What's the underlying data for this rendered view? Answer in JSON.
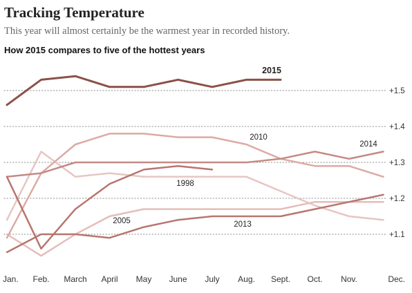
{
  "header": {
    "title": "Tracking Temperature",
    "subtitle": "This year will almost certainly be the warmest year in recorded history."
  },
  "chart_data": {
    "type": "line",
    "title": "How 2015 compares to five of the hottest years",
    "xlabel": "",
    "ylabel": "",
    "categories": [
      "Jan.",
      "Feb.",
      "March",
      "April",
      "May",
      "June",
      "July",
      "Aug.",
      "Sept.",
      "Oct.",
      "Nov.",
      "Dec."
    ],
    "y_ticks": [
      1.1,
      1.2,
      1.3,
      1.4,
      1.5
    ],
    "y_tick_labels": [
      "+1.1",
      "+1.2",
      "+1.3",
      "+1.4",
      "+1.5"
    ],
    "ylim": [
      1.03,
      1.57
    ],
    "grid": "dotted horizontal",
    "series": [
      {
        "name": "1998",
        "color": "#e6c6c2",
        "width": 2.5,
        "values": [
          1.14,
          1.33,
          1.26,
          1.27,
          1.26,
          1.26,
          1.26,
          1.26,
          1.22,
          1.18,
          1.15,
          1.14
        ]
      },
      {
        "name": "2005",
        "color": "#e4bdb8",
        "width": 2.5,
        "values": [
          1.1,
          1.04,
          1.1,
          1.15,
          1.17,
          1.17,
          1.17,
          1.17,
          1.17,
          1.19,
          1.19,
          1.19
        ]
      },
      {
        "name": "2010",
        "color": "#dcaaa4",
        "width": 2.5,
        "values": [
          1.09,
          1.27,
          1.35,
          1.38,
          1.38,
          1.37,
          1.37,
          1.35,
          1.31,
          1.29,
          1.29,
          1.26
        ]
      },
      {
        "name": "2014",
        "color": "#c48a85",
        "width": 2.5,
        "values": [
          1.26,
          1.27,
          1.3,
          1.3,
          1.3,
          1.3,
          1.3,
          1.3,
          1.31,
          1.33,
          1.31,
          1.33
        ]
      },
      {
        "name": "2013",
        "color": "#b8756e",
        "width": 2.5,
        "values": [
          1.05,
          1.1,
          1.1,
          1.09,
          1.12,
          1.14,
          1.15,
          1.15,
          1.15,
          1.17,
          1.19,
          1.21
        ]
      },
      {
        "name": "",
        "color": "#b8756e",
        "width": 2.5,
        "values": [
          1.26,
          1.06,
          1.17,
          1.24,
          1.28,
          1.29,
          1.28,
          null,
          null,
          null,
          null,
          null
        ]
      },
      {
        "name": "2015",
        "color": "#8b5148",
        "width": 3,
        "values": [
          1.46,
          1.53,
          1.54,
          1.51,
          1.51,
          1.53,
          1.51,
          1.53,
          1.53,
          null,
          null,
          null
        ]
      }
    ],
    "annotations": [
      {
        "text": "2015",
        "series": "2015",
        "bold": true
      },
      {
        "text": "2010",
        "series": "2010"
      },
      {
        "text": "2014",
        "series": "2014"
      },
      {
        "text": "1998",
        "series": "1998"
      },
      {
        "text": "2005",
        "series": "2005"
      },
      {
        "text": "2013",
        "series": "2013"
      }
    ]
  }
}
